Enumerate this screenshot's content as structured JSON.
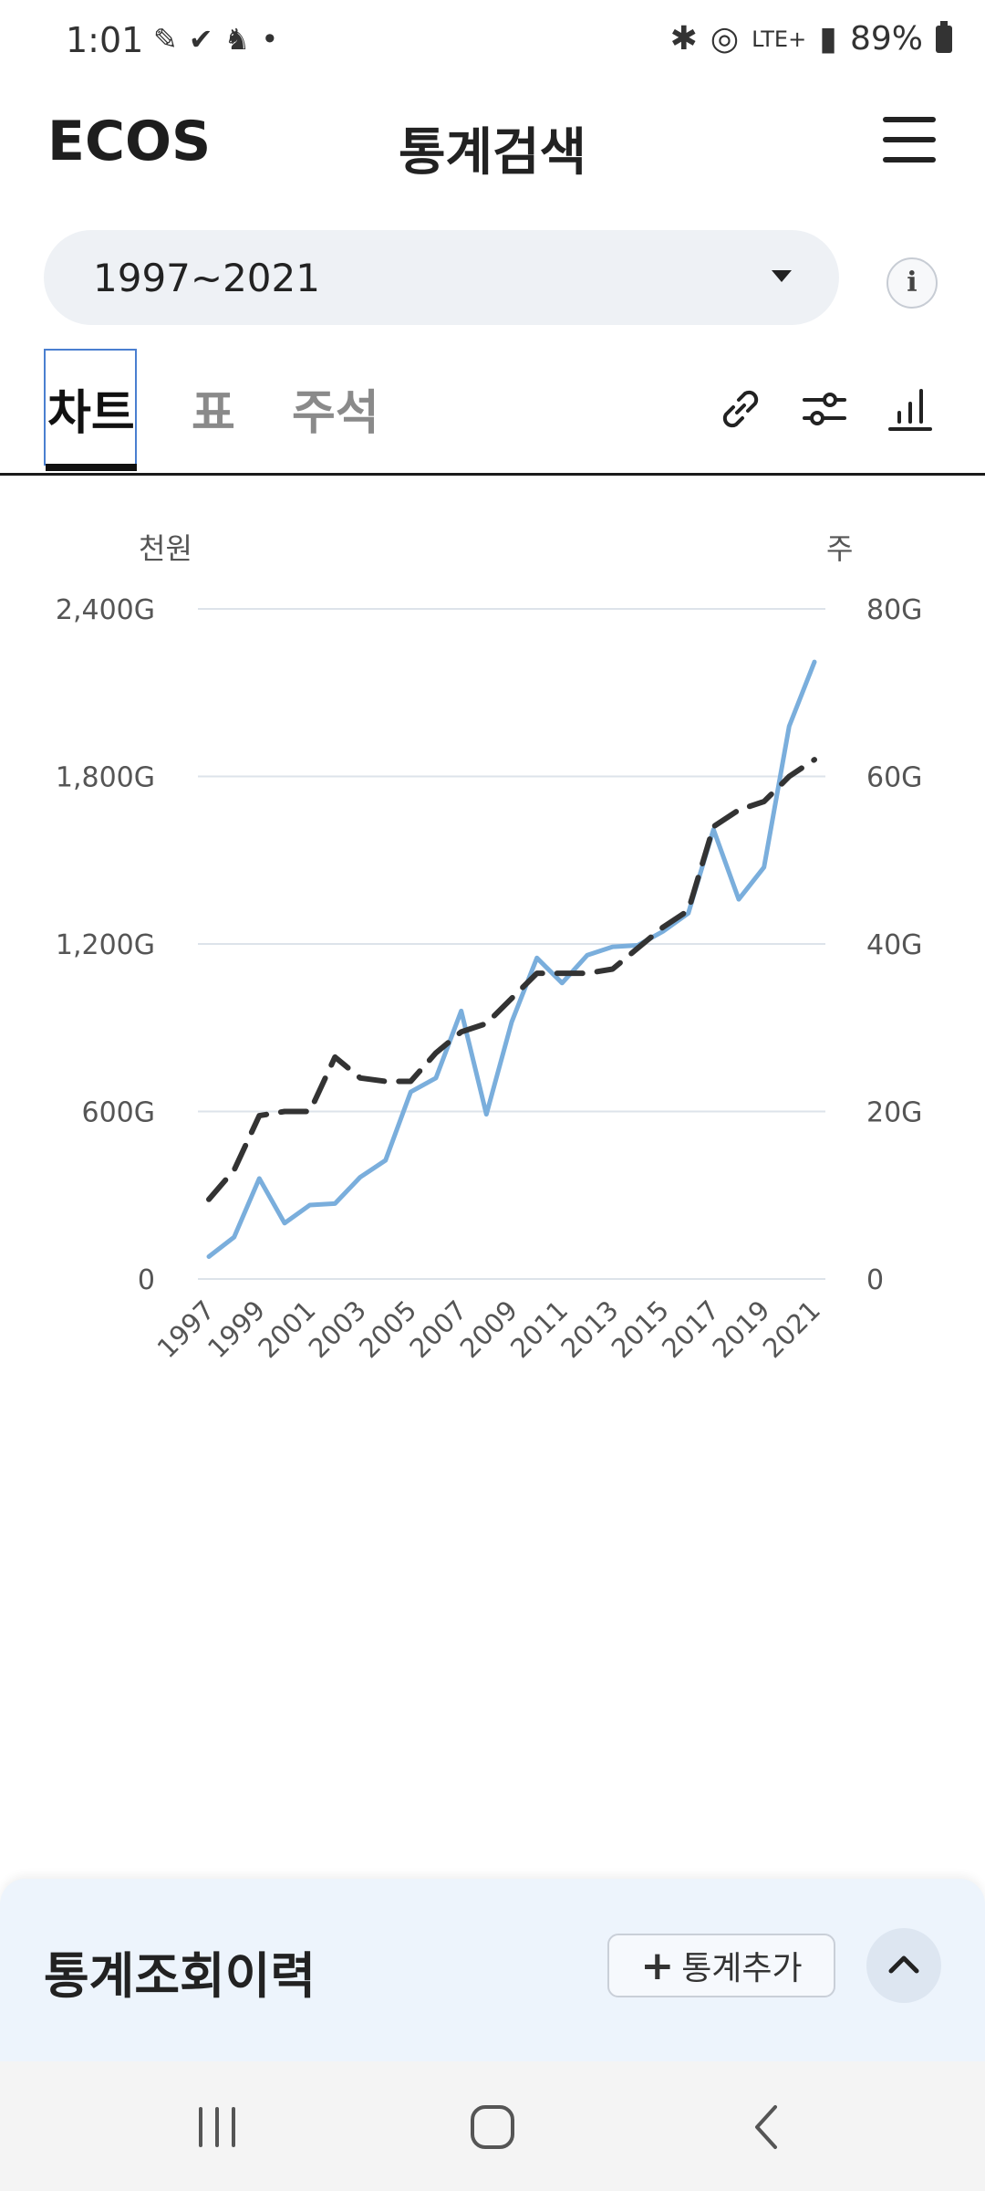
{
  "status_bar": {
    "time": "1:01",
    "left_icons": [
      "pen-icon",
      "check-icon",
      "bird-icon",
      "dot-icon"
    ],
    "network": "LTE+",
    "battery": "89%"
  },
  "header": {
    "logo": "ECOS",
    "title": "통계검색"
  },
  "range_select": {
    "value": "1997~2021"
  },
  "tabs": [
    {
      "label": "차트",
      "active": true
    },
    {
      "label": "표",
      "active": false
    },
    {
      "label": "주석",
      "active": false
    }
  ],
  "chart_data": {
    "type": "line",
    "left_unit": "천원",
    "right_unit": "주",
    "y_left_ticks": [
      "0",
      "600G",
      "1,200G",
      "1,800G",
      "2,400G"
    ],
    "y_right_ticks": [
      "0",
      "20G",
      "40G",
      "60G",
      "80G"
    ],
    "ylim_left": [
      0,
      2400
    ],
    "ylim_right": [
      0,
      80
    ],
    "x_tick_labels": [
      "1997",
      "1999",
      "2001",
      "2003",
      "2005",
      "2007",
      "2009",
      "2011",
      "2013",
      "2015",
      "2017",
      "2019",
      "2021"
    ],
    "x": [
      1997,
      1998,
      1999,
      2000,
      2001,
      2002,
      2003,
      2004,
      2005,
      2006,
      2007,
      2008,
      2009,
      2010,
      2011,
      2012,
      2013,
      2014,
      2015,
      2016,
      2017,
      2018,
      2019,
      2020,
      2021
    ],
    "grid": true,
    "series": [
      {
        "axis": "left",
        "style": "solid",
        "color": "#7aaedc",
        "values": [
          80,
          150,
          360,
          200,
          265,
          270,
          365,
          425,
          670,
          720,
          960,
          590,
          920,
          1150,
          1060,
          1160,
          1190,
          1195,
          1245,
          1310,
          1610,
          1360,
          1475,
          1980,
          2210
        ]
      },
      {
        "axis": "right",
        "style": "dashed",
        "color": "#333333",
        "values": [
          9.5,
          13,
          19.5,
          20,
          20,
          26.5,
          24,
          23.6,
          23.6,
          27,
          29.5,
          30.5,
          33.5,
          36.5,
          36.5,
          36.5,
          37,
          39.5,
          42,
          44,
          54,
          56,
          57,
          60,
          62
        ]
      }
    ]
  },
  "history": {
    "title": "통계조회이력",
    "add_label": "통계추가"
  },
  "colors": {
    "tab_focus": "#4a7fd0",
    "series1": "#7aaedc",
    "series2": "#333333",
    "history_bg": "#edf4fc"
  }
}
